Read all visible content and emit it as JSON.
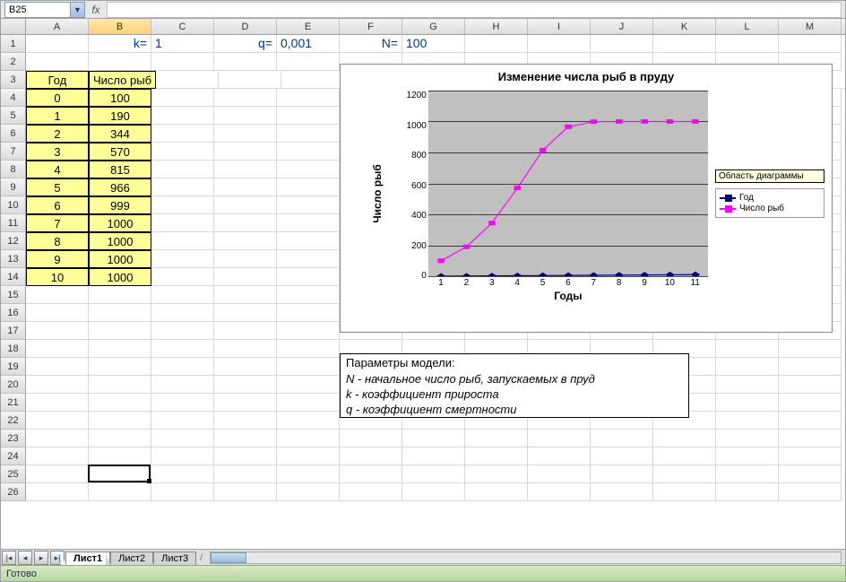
{
  "name_box": "B25",
  "fx_label": "fx",
  "formula_value": "",
  "columns": [
    "A",
    "B",
    "C",
    "D",
    "E",
    "F",
    "G",
    "H",
    "I",
    "J",
    "K",
    "L",
    "M"
  ],
  "selected_column": "B",
  "row_count": 26,
  "active_cell": {
    "row": 25,
    "col": 1
  },
  "params_row": {
    "k_label": "k=",
    "k_value": "1",
    "q_label": "q=",
    "q_value": "0,001",
    "n_label": "N=",
    "n_value": "100"
  },
  "table": {
    "headers": [
      "Год",
      "Число рыб"
    ],
    "rows": [
      [
        "0",
        "100"
      ],
      [
        "1",
        "190"
      ],
      [
        "2",
        "344"
      ],
      [
        "3",
        "570"
      ],
      [
        "4",
        "815"
      ],
      [
        "5",
        "966"
      ],
      [
        "6",
        "999"
      ],
      [
        "7",
        "1000"
      ],
      [
        "8",
        "1000"
      ],
      [
        "9",
        "1000"
      ],
      [
        "10",
        "1000"
      ]
    ]
  },
  "chart": {
    "title": "Изменение числа рыб в пруду",
    "y_label": "Число рыб",
    "x_label": "Годы",
    "y_ticks": [
      "1200",
      "1000",
      "800",
      "600",
      "400",
      "200",
      "0"
    ],
    "x_ticks": [
      "1",
      "2",
      "3",
      "4",
      "5",
      "6",
      "7",
      "8",
      "9",
      "10",
      "11"
    ],
    "ymax": 1200,
    "series": [
      {
        "name": "Год",
        "color": "#000080",
        "marker": "diamond",
        "values": [
          0,
          1,
          2,
          3,
          4,
          5,
          6,
          7,
          8,
          9,
          10
        ]
      },
      {
        "name": "Число рыб",
        "color": "#ff00ff",
        "marker": "square",
        "values": [
          100,
          190,
          344,
          570,
          815,
          966,
          999,
          1000,
          1000,
          1000,
          1000
        ]
      }
    ],
    "tooltip": "Область диаграммы",
    "plot_bg": "#c0c0c0",
    "grid_color": "#000000"
  },
  "param_box": {
    "title": "Параметры модели:",
    "lines": [
      "N - начальное число рыб, запускаемых в пруд",
      "k - коэффициент прироста",
      "q - коэффициент смертности"
    ]
  },
  "tabs": {
    "items": [
      "Лист1",
      "Лист2",
      "Лист3"
    ],
    "active": 0
  },
  "status": "Готово"
}
